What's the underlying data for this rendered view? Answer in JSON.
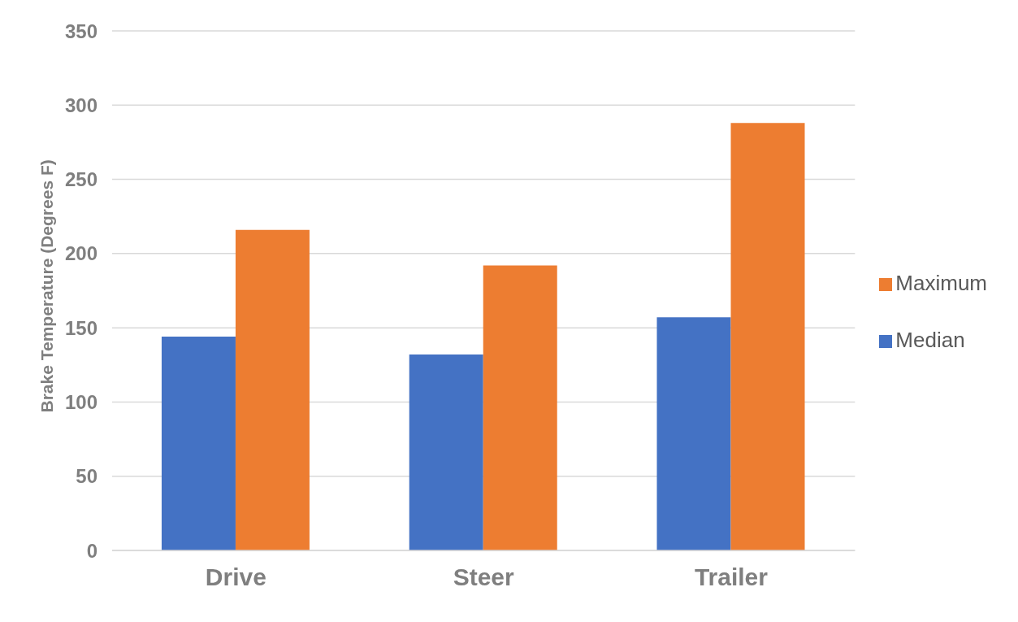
{
  "chart_data": {
    "type": "bar",
    "ylabel": "Brake Temperature (Degrees F)",
    "categories": [
      "Drive",
      "Steer",
      "Trailer"
    ],
    "series": [
      {
        "name": "Median",
        "color": "#4472c4",
        "values": [
          144,
          132,
          157
        ]
      },
      {
        "name": "Maximum",
        "color": "#ed7d31",
        "values": [
          216,
          192,
          288
        ]
      }
    ],
    "ylim": [
      0,
      350
    ],
    "yticks": [
      0,
      50,
      100,
      150,
      200,
      250,
      300,
      350
    ],
    "grid": "y",
    "legend": "right"
  }
}
